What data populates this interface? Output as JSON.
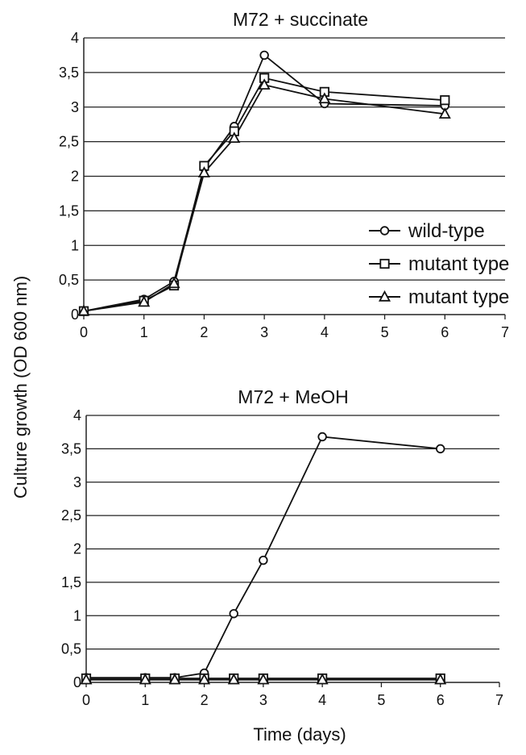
{
  "figure": {
    "ylabel": "Culture growth (OD 600 nm)",
    "xlabel": "Time (days)"
  },
  "chart_data": [
    {
      "type": "line",
      "title": "M72 + succinate",
      "xlim": [
        0,
        7
      ],
      "ylim": [
        0,
        4
      ],
      "x_ticks": [
        0,
        1,
        2,
        3,
        4,
        5,
        6,
        7
      ],
      "y_ticks": [
        "0",
        "0,5",
        "1",
        "1,5",
        "2",
        "2,5",
        "3",
        "3,5",
        "4"
      ],
      "grid": "horizontal",
      "legend_position": "right",
      "series": [
        {
          "name": "wild-type",
          "marker": "circle",
          "x": [
            0,
            1,
            1.5,
            2,
            2.5,
            3,
            4,
            6
          ],
          "y": [
            0.05,
            0.22,
            0.48,
            2.12,
            2.72,
            3.75,
            3.05,
            3.02
          ]
        },
        {
          "name": "mutant type",
          "marker": "square",
          "x": [
            0,
            1,
            1.5,
            2,
            2.5,
            3,
            4,
            6
          ],
          "y": [
            0.05,
            0.2,
            0.42,
            2.15,
            2.65,
            3.42,
            3.22,
            3.1
          ]
        },
        {
          "name": "mutant type",
          "marker": "triangle",
          "x": [
            0,
            1,
            1.5,
            2,
            2.5,
            3,
            4,
            6
          ],
          "y": [
            0.05,
            0.18,
            0.45,
            2.05,
            2.55,
            3.32,
            3.12,
            2.9
          ]
        }
      ]
    },
    {
      "type": "line",
      "title": "M72 + MeOH",
      "xlim": [
        0,
        7
      ],
      "ylim": [
        0,
        4
      ],
      "x_ticks": [
        0,
        1,
        2,
        3,
        4,
        5,
        6,
        7
      ],
      "y_ticks": [
        "0",
        "0,5",
        "1",
        "1,5",
        "2",
        "2,5",
        "3",
        "3,5",
        "4"
      ],
      "grid": "horizontal",
      "series": [
        {
          "name": "wild-type",
          "marker": "circle",
          "x": [
            0,
            1,
            1.5,
            2,
            2.5,
            3,
            4,
            6
          ],
          "y": [
            0.07,
            0.07,
            0.07,
            0.14,
            1.03,
            1.83,
            3.68,
            3.5
          ]
        },
        {
          "name": "mutant type",
          "marker": "square",
          "x": [
            0,
            1,
            1.5,
            2,
            2.5,
            3,
            4,
            6
          ],
          "y": [
            0.06,
            0.06,
            0.06,
            0.06,
            0.06,
            0.06,
            0.06,
            0.06
          ]
        },
        {
          "name": "mutant type",
          "marker": "triangle",
          "x": [
            0,
            1,
            1.5,
            2,
            2.5,
            3,
            4,
            6
          ],
          "y": [
            0.04,
            0.04,
            0.04,
            0.04,
            0.04,
            0.04,
            0.04,
            0.04
          ]
        }
      ]
    }
  ]
}
